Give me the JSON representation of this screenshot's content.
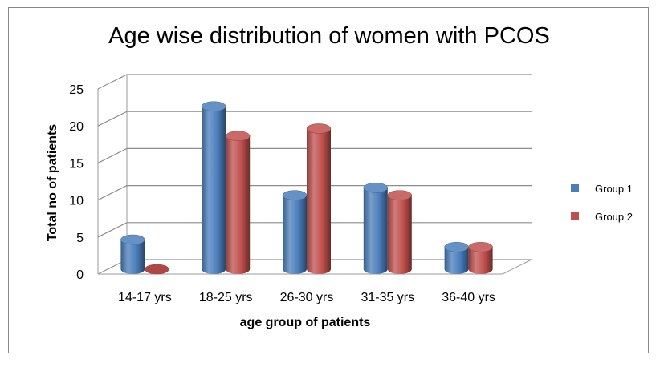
{
  "chart_data": {
    "type": "bar",
    "title": "Age wise distribution of women with PCOS",
    "xlabel": "age group of patients",
    "ylabel": "Total no of patients",
    "categories": [
      "14-17 yrs",
      "18-25 yrs",
      "26-30 yrs",
      "31-35 yrs",
      "36-40 yrs"
    ],
    "series": [
      {
        "name": "Group 1",
        "values": [
          4,
          22,
          10,
          11,
          3
        ],
        "color": "#4A7EBB"
      },
      {
        "name": "Group 2",
        "values": [
          0,
          18,
          19,
          10,
          3
        ],
        "color": "#C0504D"
      }
    ],
    "ylim": [
      0,
      25
    ],
    "yticks": [
      0,
      5,
      10,
      15,
      20,
      25
    ],
    "grid": true,
    "legend": "right",
    "style": "3d-cylinder"
  }
}
